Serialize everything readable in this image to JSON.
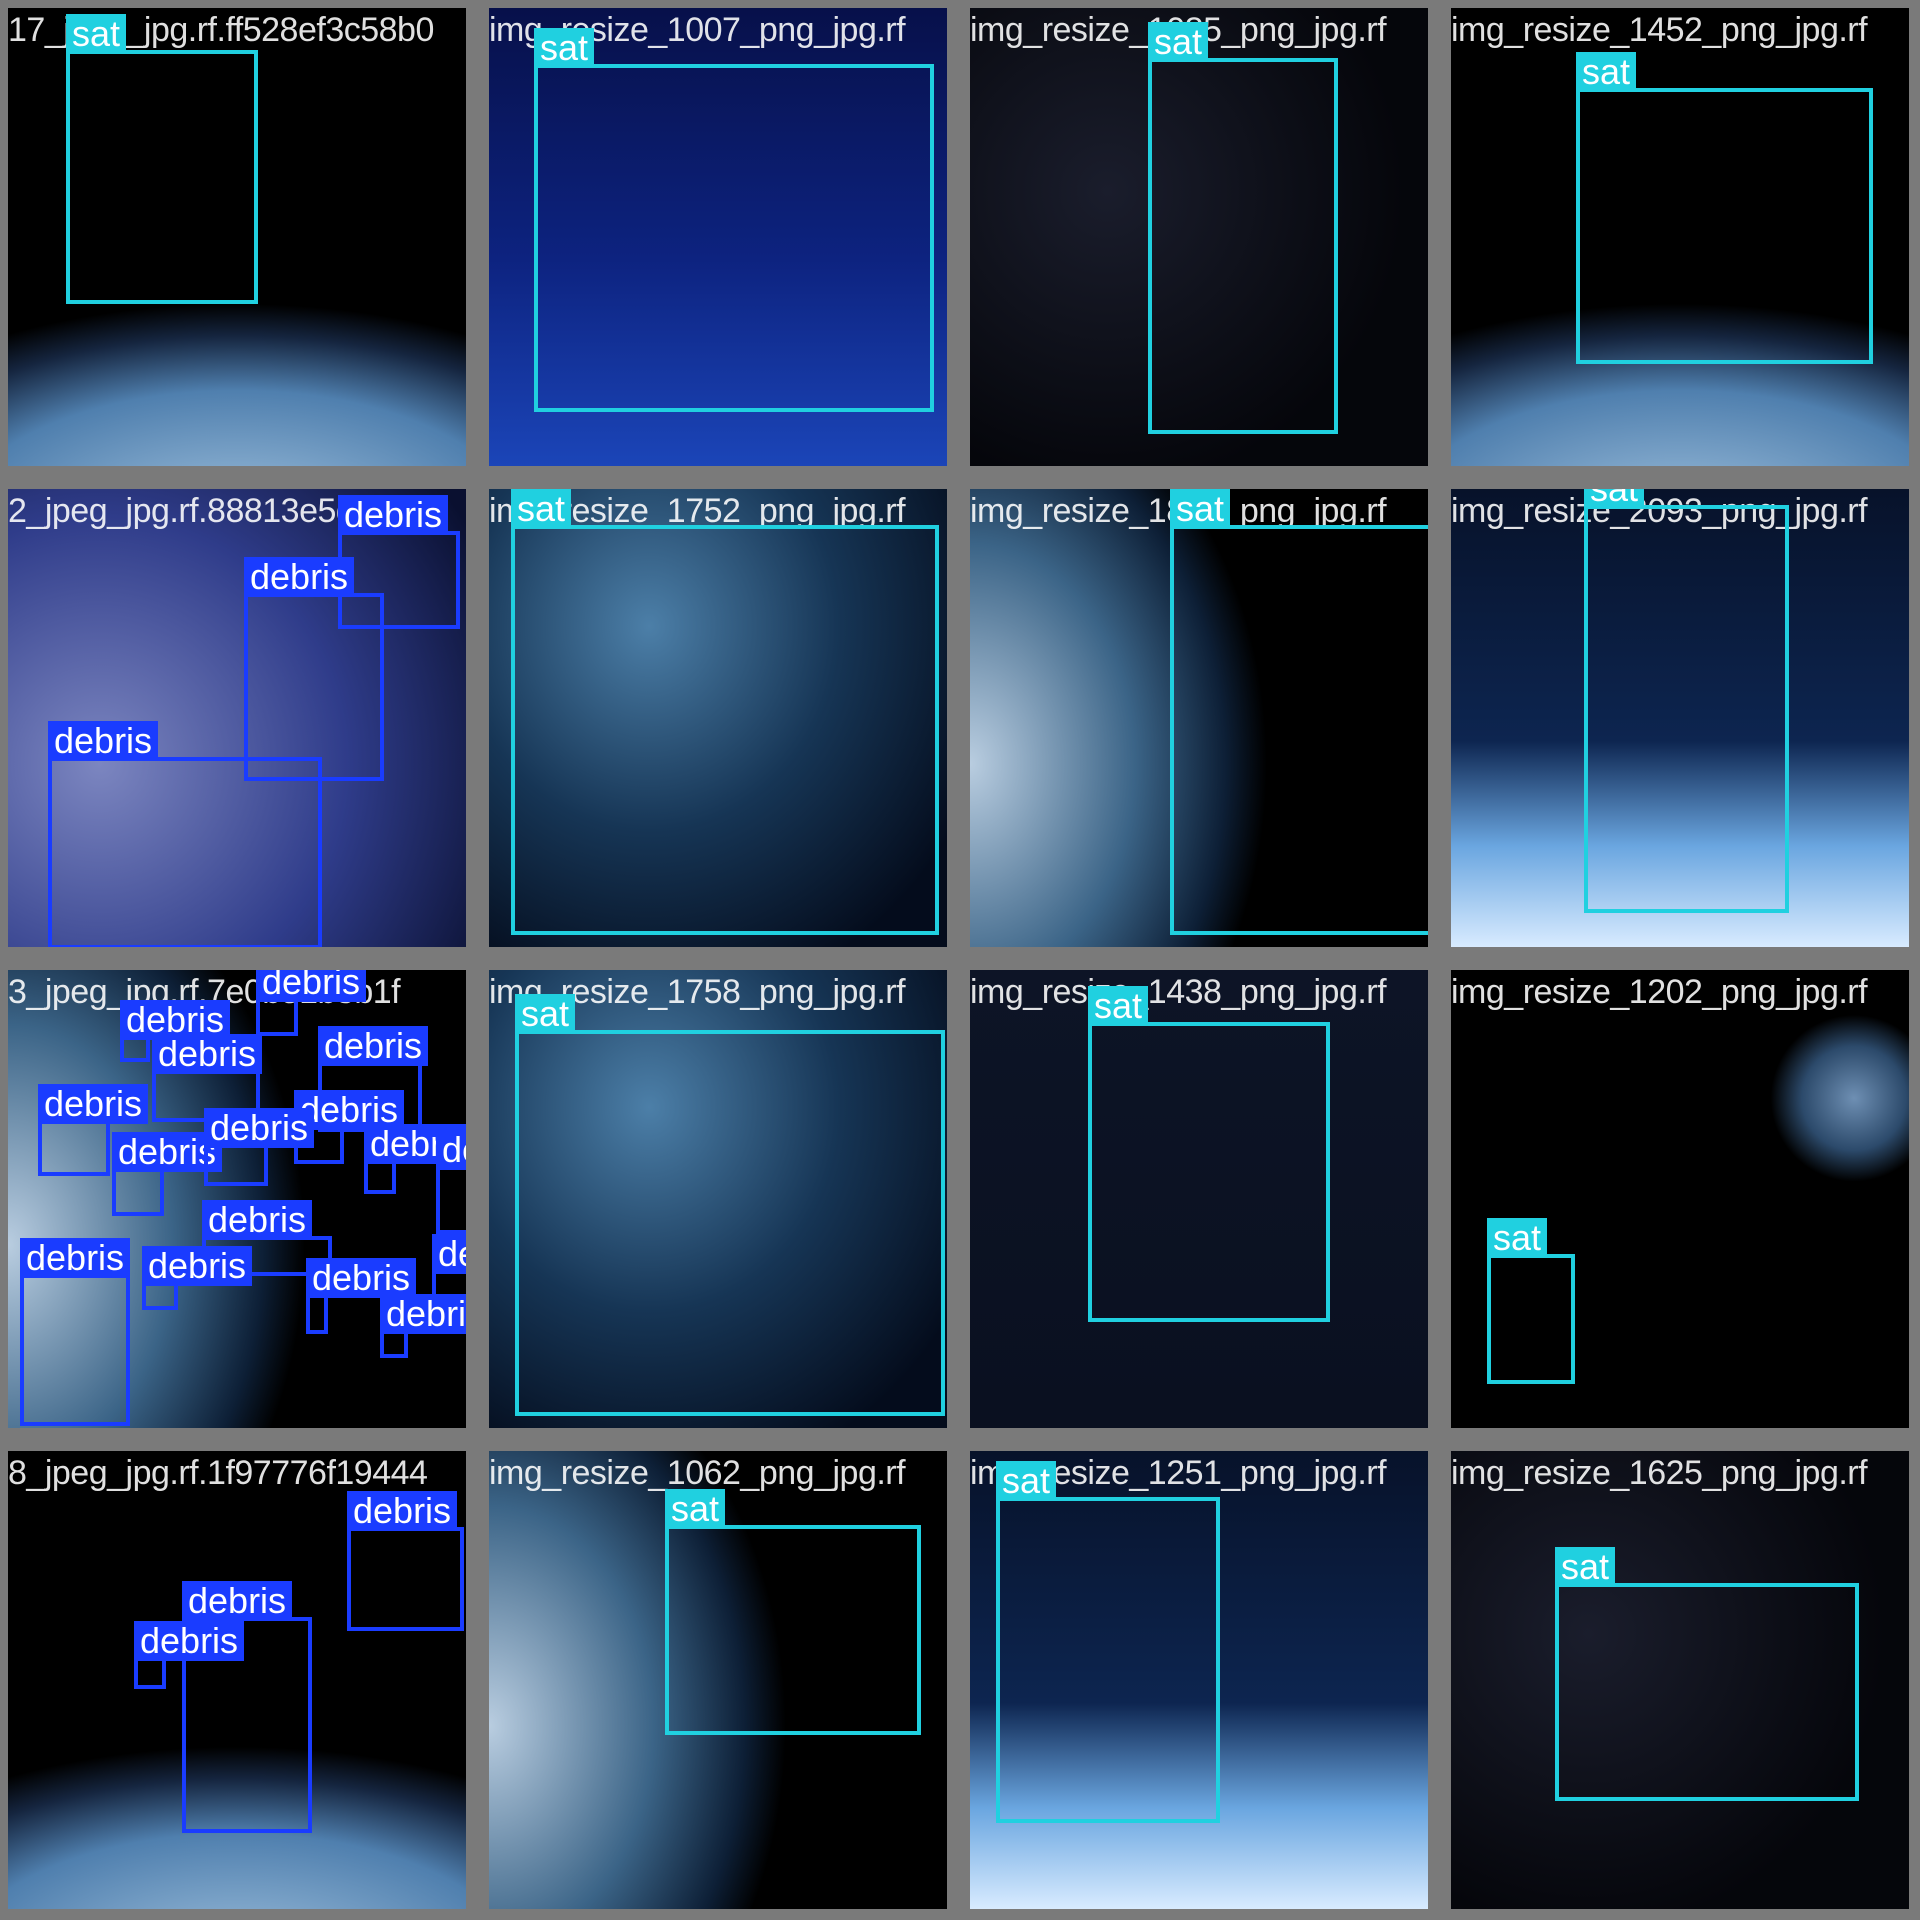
{
  "colors": {
    "sat": "#20d0e0",
    "debris": "#1a3cff",
    "gap": "#7a7a7a"
  },
  "tiles": [
    {
      "filename": "17_jpeg_jpg.rf.ff528ef3c58b0",
      "scene": "earth-bottom",
      "boxes": [
        {
          "label": "sat",
          "b": [
            58,
            42,
            250,
            296
          ]
        }
      ]
    },
    {
      "filename": "img_resize_1007_png_jpg.rf",
      "scene": "blue-grid",
      "boxes": [
        {
          "label": "sat",
          "b": [
            45,
            56,
            445,
            404
          ]
        }
      ]
    },
    {
      "filename": "img_resize_1085_png_jpg.rf",
      "scene": "stars",
      "boxes": [
        {
          "label": "sat",
          "b": [
            178,
            50,
            368,
            426
          ]
        }
      ]
    },
    {
      "filename": "img_resize_1452_png_jpg.rf",
      "scene": "earth-bottom",
      "boxes": [
        {
          "label": "sat",
          "b": [
            125,
            80,
            422,
            356
          ]
        }
      ]
    },
    {
      "filename": "2_jpeg_jpg.rf.88813e5dda7bd",
      "scene": "debris-field",
      "boxes": [
        {
          "label": "debris",
          "b": [
            330,
            42,
            452,
            140
          ]
        },
        {
          "label": "debris",
          "b": [
            236,
            104,
            376,
            292
          ]
        },
        {
          "label": "debris",
          "b": [
            40,
            268,
            314,
            460
          ]
        }
      ]
    },
    {
      "filename": "img_resize_1752_png_jpg.rf",
      "scene": "nebula",
      "boxes": [
        {
          "label": "sat",
          "b": [
            22,
            36,
            450,
            446
          ]
        }
      ]
    },
    {
      "filename": "img_resize_1801_png_jpg.rf",
      "scene": "earth-left",
      "boxes": [
        {
          "label": "sat",
          "b": [
            200,
            36,
            462,
            446
          ]
        }
      ]
    },
    {
      "filename": "img_resize_2093_png_jpg.rf",
      "scene": "limb",
      "boxes": [
        {
          "label": "sat",
          "b": [
            133,
            16,
            338,
            424
          ]
        }
      ]
    },
    {
      "filename": "3_jpeg_jpg.rf.7e0b51b3b1f",
      "scene": "earth-left",
      "boxes": [
        {
          "label": "debris",
          "b": [
            248,
            28,
            290,
            66
          ]
        },
        {
          "label": "debris",
          "b": [
            112,
            66,
            142,
            92
          ]
        },
        {
          "label": "debris",
          "b": [
            144,
            100,
            252,
            152
          ]
        },
        {
          "label": "debris",
          "b": [
            310,
            92,
            414,
            162
          ]
        },
        {
          "label": "debris",
          "b": [
            30,
            150,
            102,
            206
          ]
        },
        {
          "label": "debris",
          "b": [
            286,
            156,
            336,
            194
          ]
        },
        {
          "label": "debris",
          "b": [
            104,
            198,
            156,
            246
          ]
        },
        {
          "label": "debris",
          "b": [
            196,
            174,
            260,
            216
          ]
        },
        {
          "label": "debris",
          "b": [
            356,
            190,
            388,
            224
          ]
        },
        {
          "label": "debris",
          "b": [
            428,
            196,
            470,
            264
          ]
        },
        {
          "label": "debris",
          "b": [
            194,
            266,
            324,
            306
          ]
        },
        {
          "label": "debris",
          "b": [
            12,
            304,
            122,
            456
          ]
        },
        {
          "label": "debris",
          "b": [
            134,
            312,
            170,
            340
          ]
        },
        {
          "label": "debris",
          "b": [
            298,
            324,
            320,
            364
          ]
        },
        {
          "label": "debris",
          "b": [
            424,
            300,
            472,
            340
          ]
        },
        {
          "label": "debris",
          "b": [
            372,
            360,
            400,
            388
          ]
        }
      ]
    },
    {
      "filename": "img_resize_1758_png_jpg.rf",
      "scene": "nebula",
      "boxes": [
        {
          "label": "sat",
          "b": [
            26,
            60,
            456,
            446
          ]
        }
      ]
    },
    {
      "filename": "img_resize_1438_png_jpg.rf",
      "scene": "dark-navy",
      "boxes": [
        {
          "label": "sat",
          "b": [
            118,
            52,
            360,
            352
          ]
        }
      ]
    },
    {
      "filename": "img_resize_1202_png_jpg.rf",
      "scene": "earth-small",
      "boxes": [
        {
          "label": "sat",
          "b": [
            36,
            284,
            124,
            414
          ]
        }
      ]
    },
    {
      "filename": "8_jpeg_jpg.rf.1f97776f19444",
      "scene": "earth-bottom",
      "boxes": [
        {
          "label": "debris",
          "b": [
            339,
            76,
            456,
            180
          ]
        },
        {
          "label": "debris",
          "b": [
            174,
            166,
            304,
            382
          ]
        },
        {
          "label": "debris",
          "b": [
            126,
            206,
            158,
            238
          ]
        }
      ]
    },
    {
      "filename": "img_resize_1062_png_jpg.rf",
      "scene": "earth-left",
      "boxes": [
        {
          "label": "sat",
          "b": [
            176,
            74,
            432,
            284
          ]
        }
      ]
    },
    {
      "filename": "img_resize_1251_png_jpg.rf",
      "scene": "limb",
      "boxes": [
        {
          "label": "sat",
          "b": [
            26,
            46,
            250,
            372
          ]
        }
      ]
    },
    {
      "filename": "img_resize_1625_png_jpg.rf",
      "scene": "stars",
      "boxes": [
        {
          "label": "sat",
          "b": [
            104,
            132,
            408,
            350
          ]
        }
      ]
    }
  ]
}
